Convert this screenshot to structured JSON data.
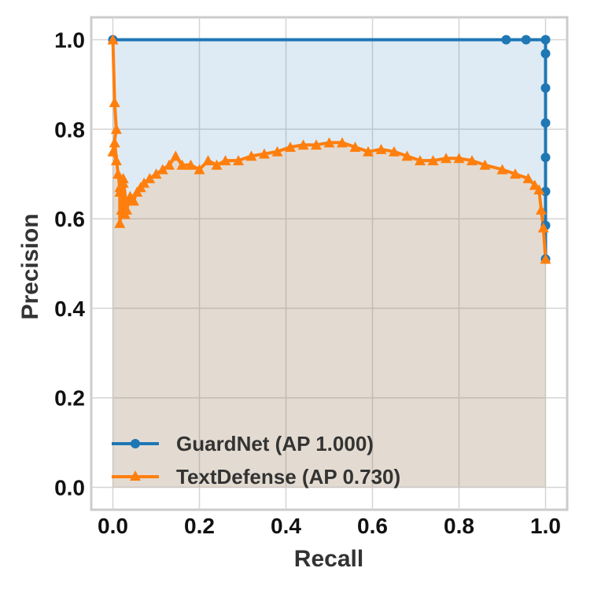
{
  "chart_data": {
    "type": "line",
    "title": "",
    "xlabel": "Recall",
    "ylabel": "Precision",
    "xlim": [
      -0.05,
      1.05
    ],
    "ylim": [
      -0.05,
      1.05
    ],
    "xticks": [
      "0.0",
      "0.2",
      "0.4",
      "0.6",
      "0.8",
      "1.0"
    ],
    "yticks": [
      "0.0",
      "0.2",
      "0.4",
      "0.6",
      "0.8",
      "1.0"
    ],
    "grid": true,
    "legend_position": "lower-left",
    "series": [
      {
        "name": "GuardNet (AP 1.000)",
        "color": "#1f77b4",
        "marker": "circle",
        "fill": true,
        "x": [
          0.0,
          0.909,
          0.955,
          1.0,
          1.0,
          1.0,
          1.0,
          1.0,
          1.0,
          1.0,
          1.0
        ],
        "y": [
          1.0,
          1.0,
          1.0,
          1.0,
          0.969,
          0.892,
          0.814,
          0.737,
          0.661,
          0.585,
          0.51
        ]
      },
      {
        "name": "TextDefense (AP 0.730)",
        "color": "#ff7f0e",
        "marker": "triangle",
        "fill": true,
        "x": [
          0.0,
          0.004,
          0.008,
          0.0,
          0.008,
          0.004,
          0.012,
          0.016,
          0.016,
          0.02,
          0.024,
          0.016,
          0.028,
          0.024,
          0.032,
          0.04,
          0.048,
          0.056,
          0.064,
          0.072,
          0.085,
          0.1,
          0.115,
          0.13,
          0.145,
          0.16,
          0.18,
          0.2,
          0.22,
          0.24,
          0.26,
          0.29,
          0.32,
          0.35,
          0.38,
          0.41,
          0.44,
          0.47,
          0.5,
          0.53,
          0.56,
          0.59,
          0.62,
          0.65,
          0.68,
          0.71,
          0.74,
          0.77,
          0.8,
          0.83,
          0.86,
          0.9,
          0.93,
          0.96,
          0.975,
          0.985,
          0.99,
          0.995,
          1.0
        ],
        "y": [
          1.0,
          0.86,
          0.8,
          0.75,
          0.73,
          0.77,
          0.7,
          0.67,
          0.59,
          0.62,
          0.68,
          0.66,
          0.61,
          0.69,
          0.62,
          0.65,
          0.64,
          0.66,
          0.67,
          0.68,
          0.69,
          0.7,
          0.71,
          0.72,
          0.74,
          0.72,
          0.72,
          0.71,
          0.73,
          0.72,
          0.73,
          0.73,
          0.74,
          0.745,
          0.75,
          0.76,
          0.765,
          0.765,
          0.77,
          0.77,
          0.76,
          0.75,
          0.755,
          0.75,
          0.74,
          0.73,
          0.73,
          0.735,
          0.735,
          0.73,
          0.72,
          0.71,
          0.7,
          0.69,
          0.675,
          0.665,
          0.62,
          0.58,
          0.51
        ]
      }
    ]
  }
}
